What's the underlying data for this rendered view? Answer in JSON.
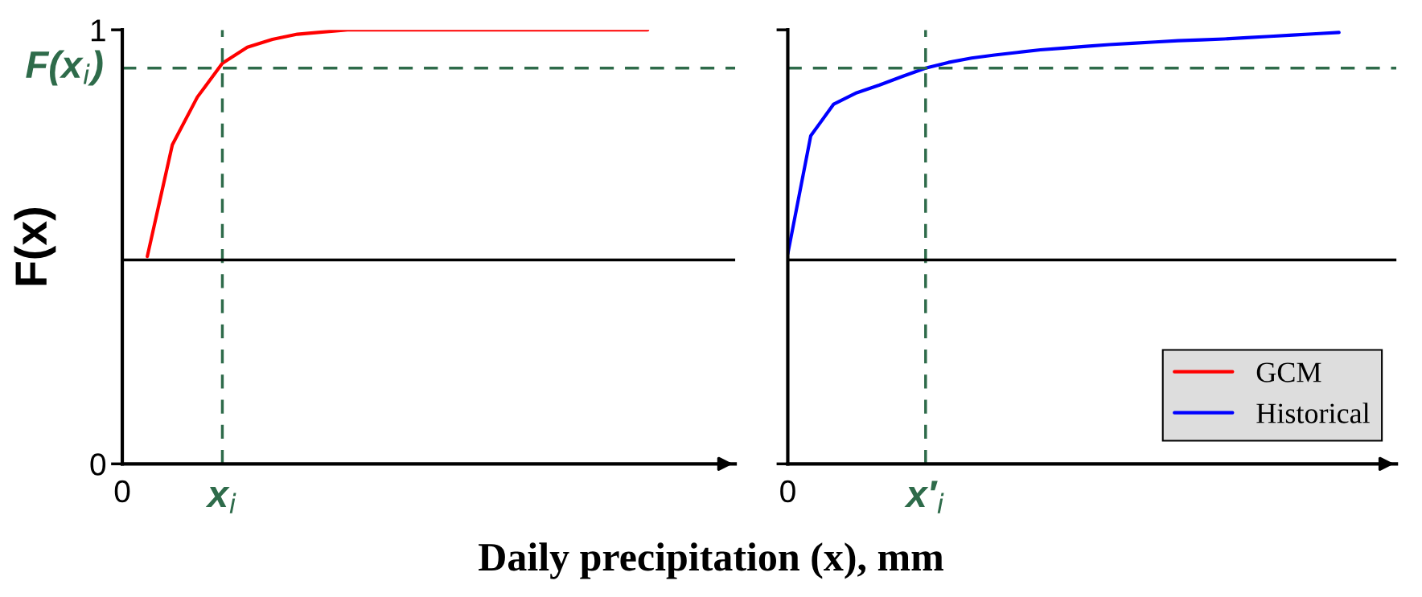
{
  "chart_data": [
    {
      "type": "line",
      "ylabel": "F(x)",
      "categories": [
        "0",
        null,
        null,
        null,
        "x$_{i}$",
        null,
        null,
        null,
        null,
        null,
        null,
        null,
        null,
        null,
        null,
        null,
        null,
        null,
        null,
        null,
        null,
        null,
        null,
        null,
        null
      ],
      "ylim": [
        0,
        1.0
      ],
      "yticks": [
        0,
        1
      ],
      "legend": "bottom right",
      "grid": false,
      "marker": "none",
      "line_style": "solid",
      "series": [
        {
          "name": "GCM",
          "color": "#ff0000",
          "values": [
            null,
            0.478,
            0.735,
            0.845,
            0.923,
            0.96,
            0.978,
            0.99,
            0.995,
            1.0,
            1.0,
            1.0,
            1.0,
            1.0,
            1.0,
            1.0,
            1.0,
            1.0,
            1.0,
            1.0,
            1.0,
            1.0,
            null,
            null,
            null
          ]
        }
      ],
      "ref_lines": [
        {
          "axis": "y",
          "value": 0.912,
          "label": "F(x$_{i}$)",
          "color": "#2e6b4a",
          "line_style": "dashed"
        },
        {
          "axis": "x",
          "value": "x$_{i}$",
          "color": "#2e6b4a",
          "line_style": "dashed"
        },
        {
          "axis": "y",
          "value": 0.47,
          "color": "#000000",
          "line_style": "solid"
        }
      ]
    },
    {
      "type": "line",
      "xlabel": "Daily precipitation (x), mm",
      "categories": [
        "0",
        null,
        null,
        null,
        null,
        null,
        "x′$_{i}$",
        null,
        null,
        null,
        null,
        null,
        null,
        null,
        null,
        null,
        null,
        null,
        null,
        null,
        null,
        null,
        null,
        null,
        null,
        null,
        null
      ],
      "ylim": [
        0,
        1.0
      ],
      "yticks": [
        {
          "value": 0,
          "label": null
        },
        {
          "value": 1,
          "label": null
        }
      ],
      "tick_labels": "x",
      "legend": "bottom right",
      "grid": false,
      "marker": "none",
      "line_style": "solid",
      "series": [
        {
          "name": "Historical",
          "color": "#0000ff",
          "values": [
            0.484,
            0.756,
            0.829,
            0.855,
            0.873,
            0.893,
            0.912,
            0.925,
            0.935,
            0.942,
            0.948,
            0.954,
            0.958,
            0.962,
            0.966,
            0.969,
            0.972,
            0.975,
            0.977,
            0.979,
            0.982,
            0.985,
            0.988,
            0.991,
            0.994,
            null,
            null
          ]
        }
      ],
      "ref_lines": [
        {
          "axis": "y",
          "value": 0.912,
          "color": "#2e6b4a",
          "line_style": "dashed"
        },
        {
          "axis": "x",
          "value": "x′$_{i}$",
          "color": "#2e6b4a",
          "line_style": "dashed"
        },
        {
          "axis": "y",
          "value": 0.47,
          "color": "#000000",
          "line_style": "solid"
        }
      ]
    }
  ]
}
